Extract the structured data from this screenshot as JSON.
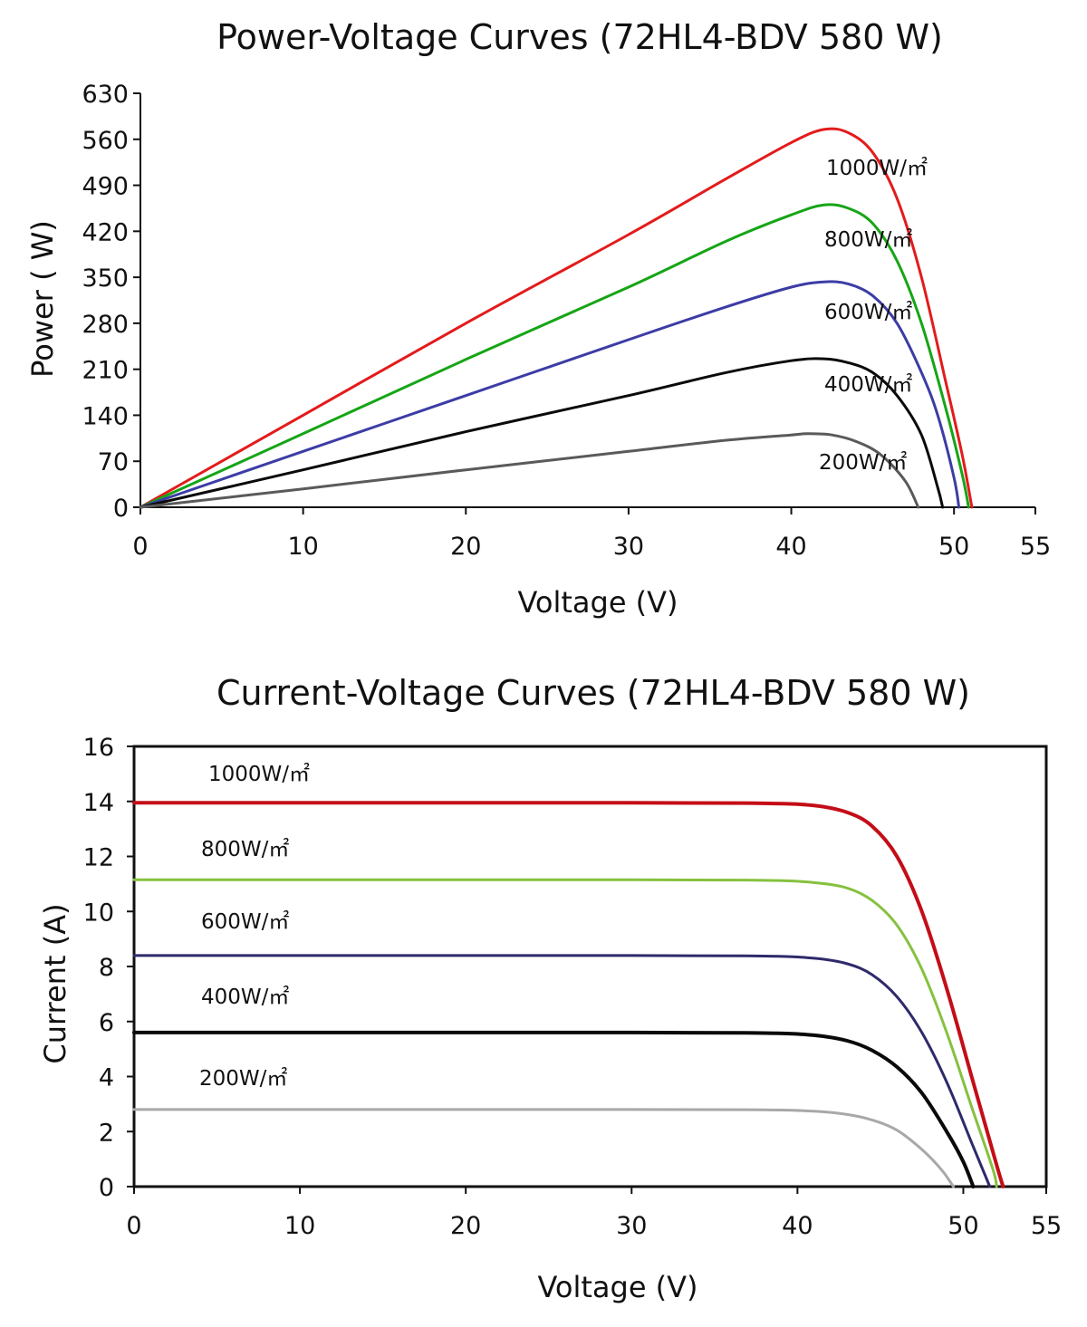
{
  "chart_data": [
    {
      "type": "line",
      "title": "Power-Voltage Curves (72HL4-BDV 580 W)",
      "xlabel": "Voltage (V)",
      "ylabel": "Power ( W)",
      "xlim": [
        0,
        55
      ],
      "ylim": [
        0,
        630
      ],
      "xticks": [
        0,
        10,
        20,
        30,
        40,
        50,
        55
      ],
      "yticks": [
        0,
        70,
        140,
        210,
        280,
        350,
        420,
        490,
        560,
        630
      ],
      "grid": false,
      "series": [
        {
          "name": "1000W/㎡",
          "label": "1000W/㎡",
          "color": "#e31b1b",
          "x": [
            0,
            10,
            20,
            30,
            36,
            40,
            42,
            43.5,
            45,
            46.5,
            48,
            49.5,
            50.5,
            51.1
          ],
          "y": [
            0,
            140,
            280,
            415,
            500,
            555,
            575,
            570,
            540,
            470,
            350,
            190,
            80,
            0
          ]
        },
        {
          "name": "800W/㎡",
          "label": "800W/㎡",
          "color": "#16a516",
          "x": [
            0,
            10,
            20,
            30,
            36,
            40,
            42,
            43.5,
            45,
            46.5,
            48,
            49.5,
            50.5,
            50.9
          ],
          "y": [
            0,
            112,
            225,
            335,
            405,
            445,
            460,
            455,
            432,
            375,
            280,
            150,
            50,
            0
          ]
        },
        {
          "name": "600W/㎡",
          "label": "600W/㎡",
          "color": "#3c3ca6",
          "x": [
            0,
            10,
            20,
            30,
            36,
            40,
            42,
            43.5,
            45,
            46.5,
            48,
            49,
            50,
            50.3
          ],
          "y": [
            0,
            85,
            170,
            255,
            305,
            335,
            343,
            340,
            322,
            280,
            205,
            140,
            45,
            0
          ]
        },
        {
          "name": "400W/㎡",
          "label": "400W/㎡",
          "color": "#0a0a0a",
          "x": [
            0,
            10,
            20,
            30,
            36,
            40,
            42,
            43.5,
            45,
            46.5,
            48,
            49,
            49.3
          ],
          "y": [
            0,
            57,
            115,
            170,
            205,
            223,
            226,
            220,
            205,
            170,
            110,
            30,
            0
          ]
        },
        {
          "name": "200W/㎡",
          "label": "200W/㎡",
          "color": "#5a5a5a",
          "x": [
            0,
            10,
            20,
            30,
            36,
            40,
            41,
            42.5,
            44,
            45.5,
            47,
            47.8
          ],
          "y": [
            0,
            28,
            57,
            85,
            102,
            110,
            112,
            110,
            100,
            80,
            40,
            0
          ]
        }
      ]
    },
    {
      "type": "line",
      "title": "Current-Voltage Curves (72HL4-BDV 580 W)",
      "xlabel": "Voltage (V)",
      "ylabel": "Current (A)",
      "xlim": [
        0,
        55
      ],
      "ylim": [
        0,
        16
      ],
      "xticks": [
        0,
        10,
        20,
        30,
        40,
        50,
        55
      ],
      "yticks": [
        0,
        2,
        4,
        6,
        8,
        10,
        12,
        14,
        16
      ],
      "grid": false,
      "series": [
        {
          "name": "1000W/㎡",
          "label": "1000W/㎡",
          "color": "#c40d17",
          "x": [
            0,
            30,
            38,
            41,
            43,
            44.5,
            46,
            47.5,
            49,
            50.5,
            52,
            52.4
          ],
          "y": [
            13.95,
            13.95,
            13.93,
            13.85,
            13.6,
            13.1,
            12.0,
            10.0,
            7.2,
            4.0,
            0.8,
            0
          ]
        },
        {
          "name": "800W/㎡",
          "label": "800W/㎡",
          "color": "#86c13f",
          "x": [
            0,
            30,
            38,
            41,
            43,
            44.5,
            46,
            47.5,
            49,
            50.5,
            51.8,
            52.0
          ],
          "y": [
            11.15,
            11.15,
            11.13,
            11.05,
            10.85,
            10.4,
            9.5,
            7.9,
            5.6,
            2.9,
            0.6,
            0
          ]
        },
        {
          "name": "600W/㎡",
          "label": "600W/㎡",
          "color": "#2e2a6a",
          "x": [
            0,
            30,
            38,
            41,
            43,
            44.5,
            46,
            47.5,
            49,
            50.5,
            51.6
          ],
          "y": [
            8.4,
            8.4,
            8.38,
            8.3,
            8.1,
            7.7,
            6.9,
            5.6,
            3.8,
            1.6,
            0
          ]
        },
        {
          "name": "400W/㎡",
          "label": "400W/㎡",
          "color": "#0a0a0a",
          "x": [
            0,
            30,
            38,
            41,
            43,
            44.5,
            46,
            47.5,
            49,
            50,
            50.6
          ],
          "y": [
            5.6,
            5.6,
            5.58,
            5.5,
            5.3,
            4.95,
            4.35,
            3.4,
            2.0,
            0.9,
            0
          ]
        },
        {
          "name": "200W/㎡",
          "label": "200W/㎡",
          "color": "#a8a8a8",
          "x": [
            0,
            30,
            38,
            41,
            43,
            44.5,
            46,
            47.5,
            48.7,
            49.4
          ],
          "y": [
            2.8,
            2.8,
            2.79,
            2.74,
            2.62,
            2.42,
            2.05,
            1.35,
            0.6,
            0
          ]
        }
      ]
    }
  ]
}
